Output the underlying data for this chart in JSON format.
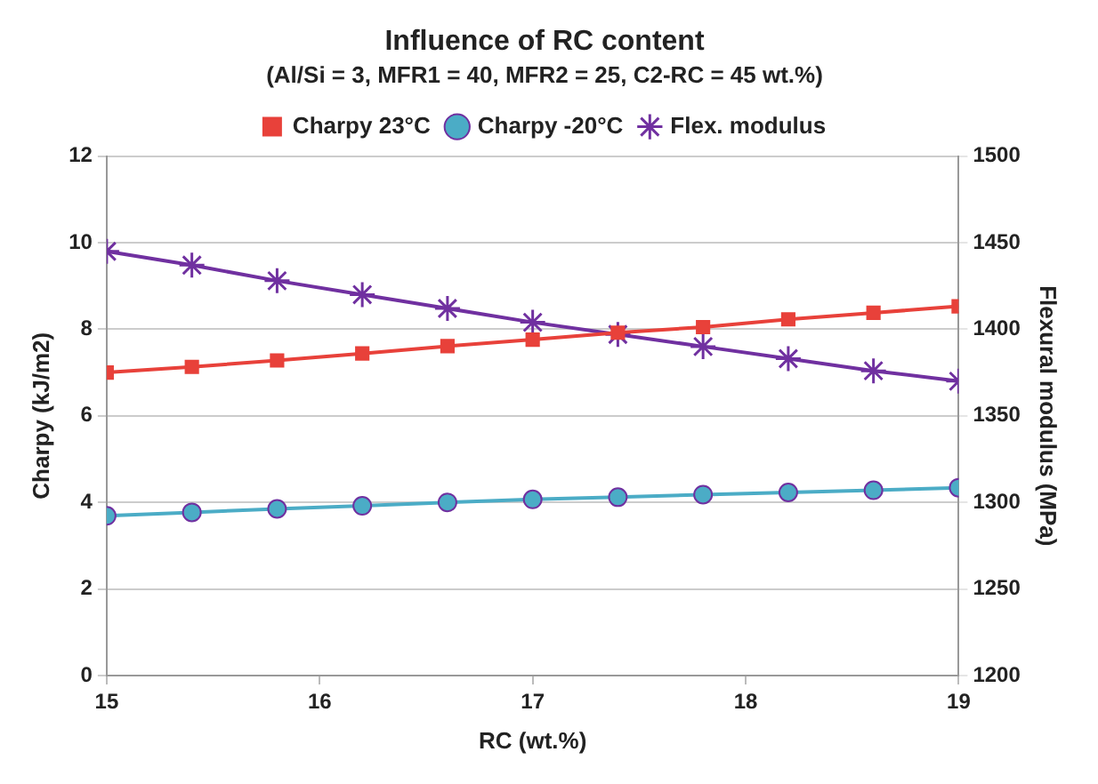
{
  "chart_data": {
    "type": "line",
    "title": "Influence of RC content",
    "subtitle": "(Al/Si = 3, MFR1 = 40, MFR2 = 25, C2-RC = 45 wt.%)",
    "xlabel": "RC (wt.%)",
    "ylabel": "Charpy (kJ/m2)",
    "y2label": "Flexural modulus (MPa)",
    "x": [
      15,
      15.4,
      15.8,
      16.2,
      16.6,
      17,
      17.4,
      17.8,
      18.2,
      18.6,
      19
    ],
    "series": [
      {
        "name": "Charpy 23°C",
        "color": "#e8413a",
        "marker": "square",
        "values": [
          7.0,
          7.13,
          7.28,
          7.44,
          7.61,
          7.76,
          7.92,
          8.05,
          8.23,
          8.38,
          8.53
        ]
      },
      {
        "name": "Charpy -20°C",
        "color": "#4bacc6",
        "marker": "circle",
        "values": [
          3.69,
          3.77,
          3.85,
          3.92,
          4.0,
          4.07,
          4.12,
          4.18,
          4.23,
          4.28,
          4.34
        ]
      },
      {
        "name": "Flex. modulus",
        "color": "#7030a0",
        "marker": "cross",
        "axis": "y2",
        "values": [
          1445,
          1437,
          1428,
          1420,
          1412,
          1404,
          1397,
          1390,
          1383,
          1376,
          1370
        ]
      }
    ],
    "xlim": [
      15,
      19
    ],
    "xticks": [
      15,
      16,
      17,
      18,
      19
    ],
    "ylim": [
      0,
      12
    ],
    "yticks": [
      0,
      2,
      4,
      6,
      8,
      10,
      12
    ],
    "y2lim": [
      1200,
      1500
    ],
    "y2ticks": [
      1200,
      1250,
      1300,
      1350,
      1400,
      1450,
      1500
    ],
    "grid": "y",
    "legend": "top",
    "line_style": "solid"
  }
}
